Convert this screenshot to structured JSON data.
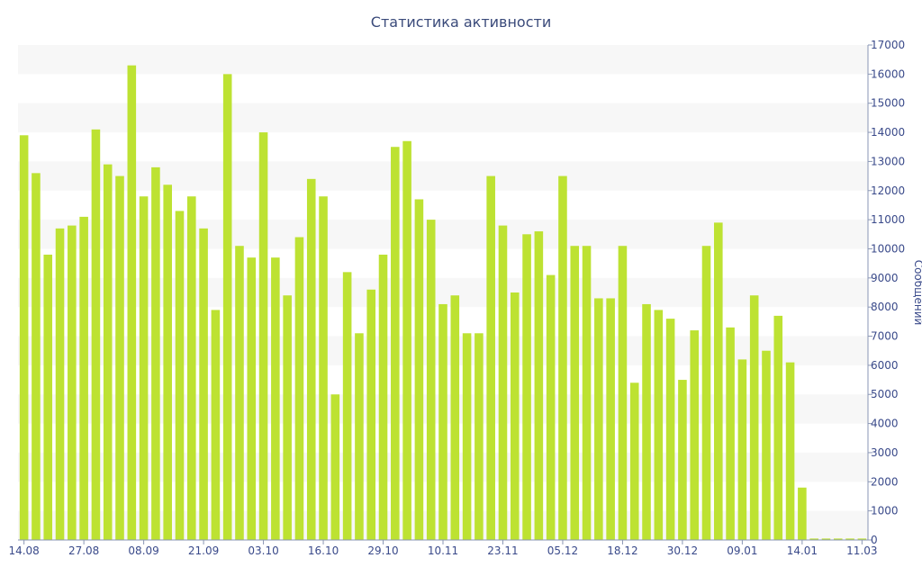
{
  "chart_data": {
    "type": "bar",
    "title": "Статистика активности",
    "ylabel": "Сообщений",
    "xlabel": "",
    "ylim": [
      0,
      17000
    ],
    "y_ticks": [
      0,
      1000,
      2000,
      3000,
      4000,
      5000,
      6000,
      7000,
      8000,
      9000,
      10000,
      11000,
      12000,
      13000,
      14000,
      15000,
      16000,
      17000
    ],
    "x_tick_labels": [
      {
        "index": 0,
        "label": "14.08"
      },
      {
        "index": 5,
        "label": "27.08"
      },
      {
        "index": 10,
        "label": "08.09"
      },
      {
        "index": 15,
        "label": "21.09"
      },
      {
        "index": 20,
        "label": "03.10"
      },
      {
        "index": 25,
        "label": "16.10"
      },
      {
        "index": 30,
        "label": "29.10"
      },
      {
        "index": 35,
        "label": "10.11"
      },
      {
        "index": 40,
        "label": "23.11"
      },
      {
        "index": 45,
        "label": "05.12"
      },
      {
        "index": 50,
        "label": "18.12"
      },
      {
        "index": 55,
        "label": "30.12"
      },
      {
        "index": 60,
        "label": "09.01"
      },
      {
        "index": 65,
        "label": "14.01"
      },
      {
        "index": 70,
        "label": "11.03"
      }
    ],
    "values": [
      13900,
      12600,
      9800,
      10700,
      10800,
      11100,
      14100,
      12900,
      12500,
      16300,
      11800,
      12800,
      12200,
      11300,
      11800,
      10700,
      7900,
      16000,
      10100,
      9700,
      14000,
      9700,
      8400,
      10400,
      12400,
      11800,
      5000,
      9200,
      7100,
      8600,
      9800,
      13500,
      13700,
      11700,
      11000,
      8100,
      8400,
      7100,
      7100,
      12500,
      10800,
      8500,
      10500,
      10600,
      9100,
      12500,
      10100,
      10100,
      8300,
      8300,
      10100,
      5400,
      8100,
      7900,
      7600,
      5500,
      7200,
      10100,
      10900,
      7300,
      6200,
      8400,
      6500,
      7700,
      6100,
      1800,
      50,
      50,
      50,
      50,
      50
    ],
    "grid": "alternating horizontal bands",
    "y_axis_side": "right",
    "colors": {
      "bar": "#bde232",
      "band": "#f7f7f7",
      "axis_text": "#3a4a8a",
      "title": "#3a4a7a"
    }
  }
}
